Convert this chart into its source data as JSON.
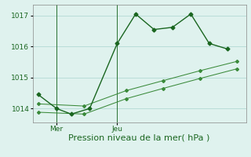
{
  "title": "",
  "xlabel": "Pression niveau de la mer( hPa )",
  "bg_color": "#dff2ee",
  "grid_color": "#b8ddd8",
  "line_color": "#1a6620",
  "band_color": "#3a8a3a",
  "ylim": [
    1013.55,
    1017.35
  ],
  "xlim": [
    -0.3,
    11.3
  ],
  "yticks": [
    1014,
    1015,
    1016,
    1017
  ],
  "xtick_positions": [
    1.0,
    4.3
  ],
  "xtick_labels": [
    "Mer",
    "Jeu"
  ],
  "main_x": [
    0,
    1.0,
    1.8,
    2.8,
    4.3,
    5.3,
    6.3,
    7.3,
    8.3,
    9.3,
    10.3
  ],
  "main_y": [
    1014.45,
    1014.0,
    1013.82,
    1014.0,
    1016.1,
    1017.05,
    1016.55,
    1016.62,
    1017.05,
    1016.1,
    1015.92
  ],
  "band_upper_x": [
    0,
    2.5,
    4.8,
    6.8,
    8.8,
    10.8
  ],
  "band_upper_y": [
    1014.15,
    1014.08,
    1014.58,
    1014.9,
    1015.22,
    1015.52
  ],
  "band_lower_x": [
    0,
    2.5,
    4.8,
    6.8,
    8.8,
    10.8
  ],
  "band_lower_y": [
    1013.88,
    1013.82,
    1014.32,
    1014.65,
    1014.97,
    1015.28
  ],
  "marker_size": 2.5,
  "line_width": 1.0,
  "tick_fontsize": 6.5,
  "xlabel_fontsize": 8
}
